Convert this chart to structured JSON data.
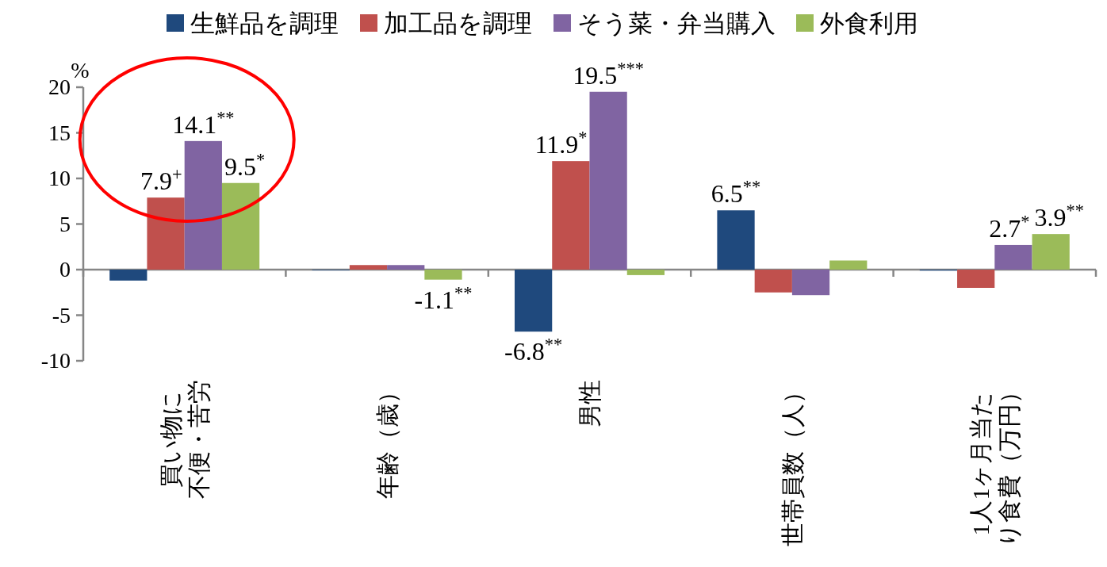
{
  "chart_data": {
    "type": "bar",
    "ylabel": "%",
    "legend": "top",
    "categories": [
      "買い物に不便・苦労",
      "年齢（歳）",
      "男性",
      "世帯員数（人）",
      "1人1ヶ月当たり食費（万円）"
    ],
    "ylim": [
      -10,
      20
    ],
    "yticks": [
      -10,
      -5,
      0,
      5,
      10,
      15,
      20
    ],
    "series": [
      {
        "name": "生鮮品を調理",
        "color": "#1f497d",
        "values": [
          -1.2,
          0.0,
          -6.8,
          6.5,
          -0.1
        ],
        "value_labels": [
          null,
          null,
          "-6.8$^{**}$",
          "6.5$^{**}$",
          null
        ]
      },
      {
        "name": "加工品を調理",
        "color": "#c0504d",
        "values": [
          7.9,
          0.5,
          11.9,
          -2.5,
          -2.0
        ],
        "value_labels": [
          "7.9$^{+}$",
          null,
          "11.9$^{*}$",
          null,
          null
        ]
      },
      {
        "name": "そう菜・弁当購入",
        "color": "#8064a2",
        "values": [
          14.1,
          0.5,
          19.5,
          -2.8,
          2.7
        ],
        "value_labels": [
          "14.1$^{**}$",
          null,
          "19.5$^{***}$",
          null,
          "2.7$^{*}$"
        ]
      },
      {
        "name": "外食利用",
        "color": "#9bbb59",
        "values": [
          9.5,
          -1.1,
          -0.6,
          1.0,
          3.9
        ],
        "value_labels": [
          "9.5$^{*}$",
          "-1.1$^{**}$",
          null,
          null,
          "3.9$^{**}$"
        ]
      }
    ]
  }
}
